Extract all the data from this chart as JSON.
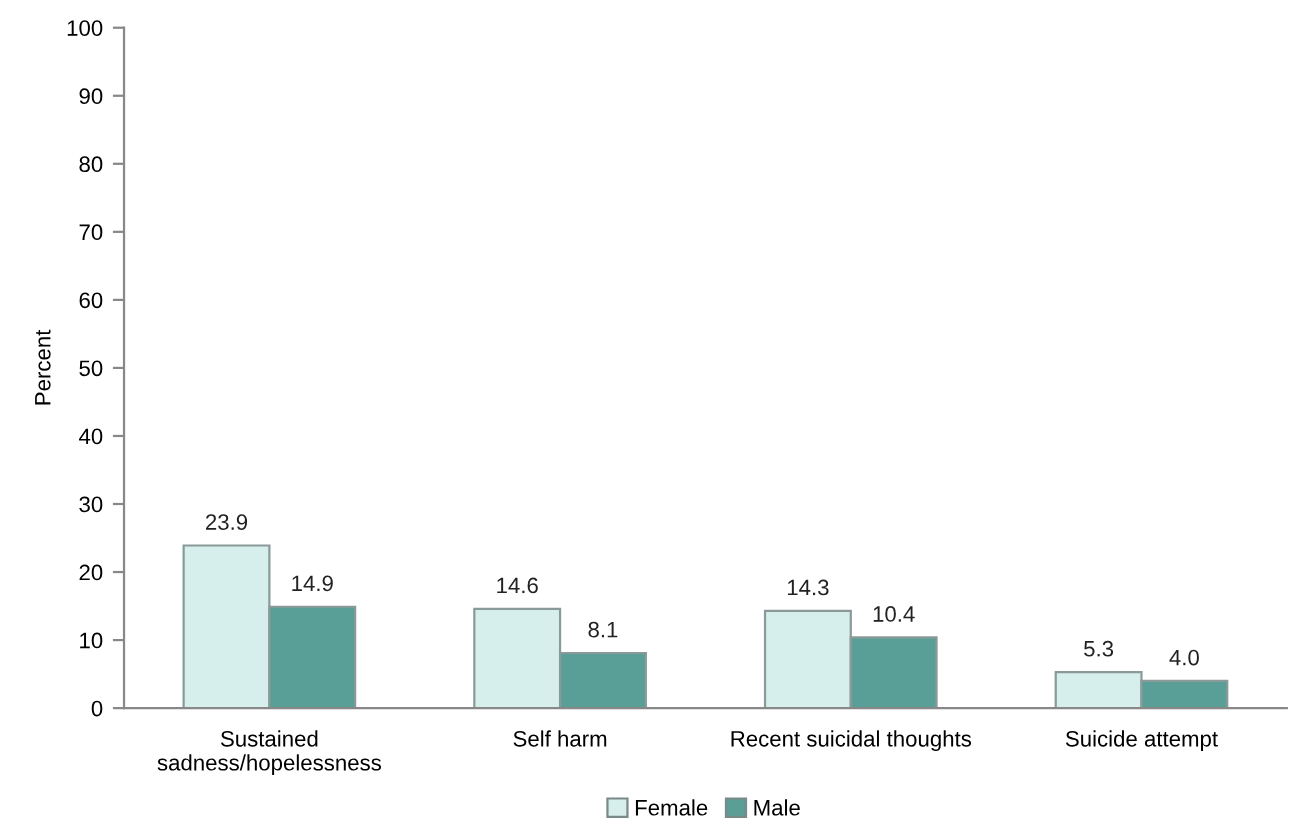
{
  "chart_data": {
    "type": "bar",
    "ylabel": "Percent",
    "categories": [
      "Sustained\nsadness/hopelessness",
      "Self harm",
      "Recent suicidal thoughts",
      "Suicide attempt"
    ],
    "series": [
      {
        "name": "Female",
        "color": "#d6eeec",
        "values": [
          23.9,
          14.6,
          14.3,
          5.3
        ],
        "value_labels": [
          "23.9",
          "14.6",
          "14.3",
          "5.3"
        ]
      },
      {
        "name": "Male",
        "color": "#5a9f97",
        "values": [
          14.9,
          8.1,
          10.4,
          4.0
        ],
        "value_labels": [
          "14.9",
          "8.1",
          "10.4",
          "4.0"
        ]
      }
    ],
    "ylim": [
      0,
      100
    ],
    "yticks": [
      0,
      10,
      20,
      30,
      40,
      50,
      60,
      70,
      80,
      90,
      100
    ],
    "grid": false,
    "legend": "bottom"
  }
}
